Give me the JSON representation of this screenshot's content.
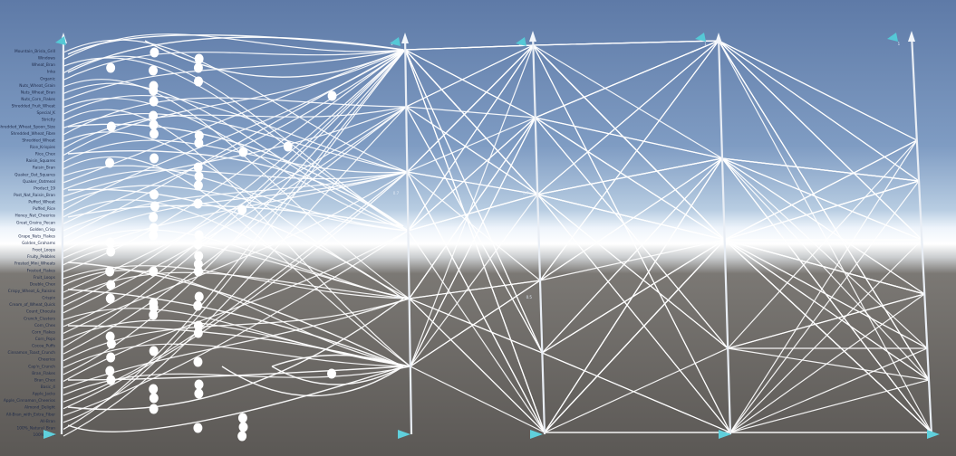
{
  "scene": {
    "colors": {
      "sky_top": "#5f7ba8",
      "sky_mid": "#9fb6d2",
      "horizon": "#ffffff",
      "ground": "#5e5b57",
      "lines": "#ffffff",
      "handle": "#55c8d6"
    }
  },
  "category_labels": [
    "Mountain_Brisla_Grill",
    "Windows",
    "Wheat_Bran",
    "Inka",
    "Organic",
    "Nuts_Wheat_Grain",
    "Nuts_Wheat_Bran",
    "Nuts_Corn_Flakes",
    "Shredded_Fruit_Wheat",
    "Special_K",
    "Strictly",
    "Shredded_Wheat_Spoon_Size",
    "Shredded_Wheat_Fibre",
    "Shredded_Wheat",
    "Rice_Krispies",
    "Rice_Chex",
    "Raisin_Squares",
    "Raisin_Bran",
    "Quaker_Oat_Squares",
    "Quaker_Oatmeal",
    "Product_19",
    "Post_Nat_Raisin_Bran",
    "Puffed_Wheat",
    "Puffed_Rice",
    "Honey_Nut_Cheerios",
    "Great_Grains_Pecan",
    "Golden_Crisp",
    "Grape_Nuts_Flakes",
    "Golden_Grahams",
    "Froot_Loops",
    "Fruity_Pebbles",
    "Frosted_Mini_Wheats",
    "Frosted_Flakes",
    "Fruit_Loops",
    "Double_Chex",
    "Crispy_Wheat_&_Raisins",
    "Crispix",
    "Cream_of_Wheat_Quick",
    "Count_Chocula",
    "Crunch_Clusters",
    "Corn_Chex",
    "Corn_Flakes",
    "Corn_Pops",
    "Cocoa_Puffs",
    "Cinnamon_Toast_Crunch",
    "Cheerios",
    "Cap'n_Crunch",
    "Bran_Flakes",
    "Bran_Chex",
    "Basic_4",
    "Apple_Jacks",
    "Apple_Cinnamon_Cheerios",
    "Almond_Delight",
    "All-Bran_with_Extra_Fiber",
    "All-Bran",
    "100%_Natural_Bran",
    "100%_Bran"
  ],
  "axes": [
    {
      "id": "axis-1",
      "tick_labels": [
        "1",
        "0.7",
        "0.5"
      ]
    },
    {
      "id": "axis-2",
      "tick_labels": [
        "1",
        "0.7",
        "0.5"
      ]
    },
    {
      "id": "axis-3",
      "tick_labels": [
        "1"
      ]
    },
    {
      "id": "axis-4",
      "tick_labels": [
        "1"
      ]
    }
  ]
}
